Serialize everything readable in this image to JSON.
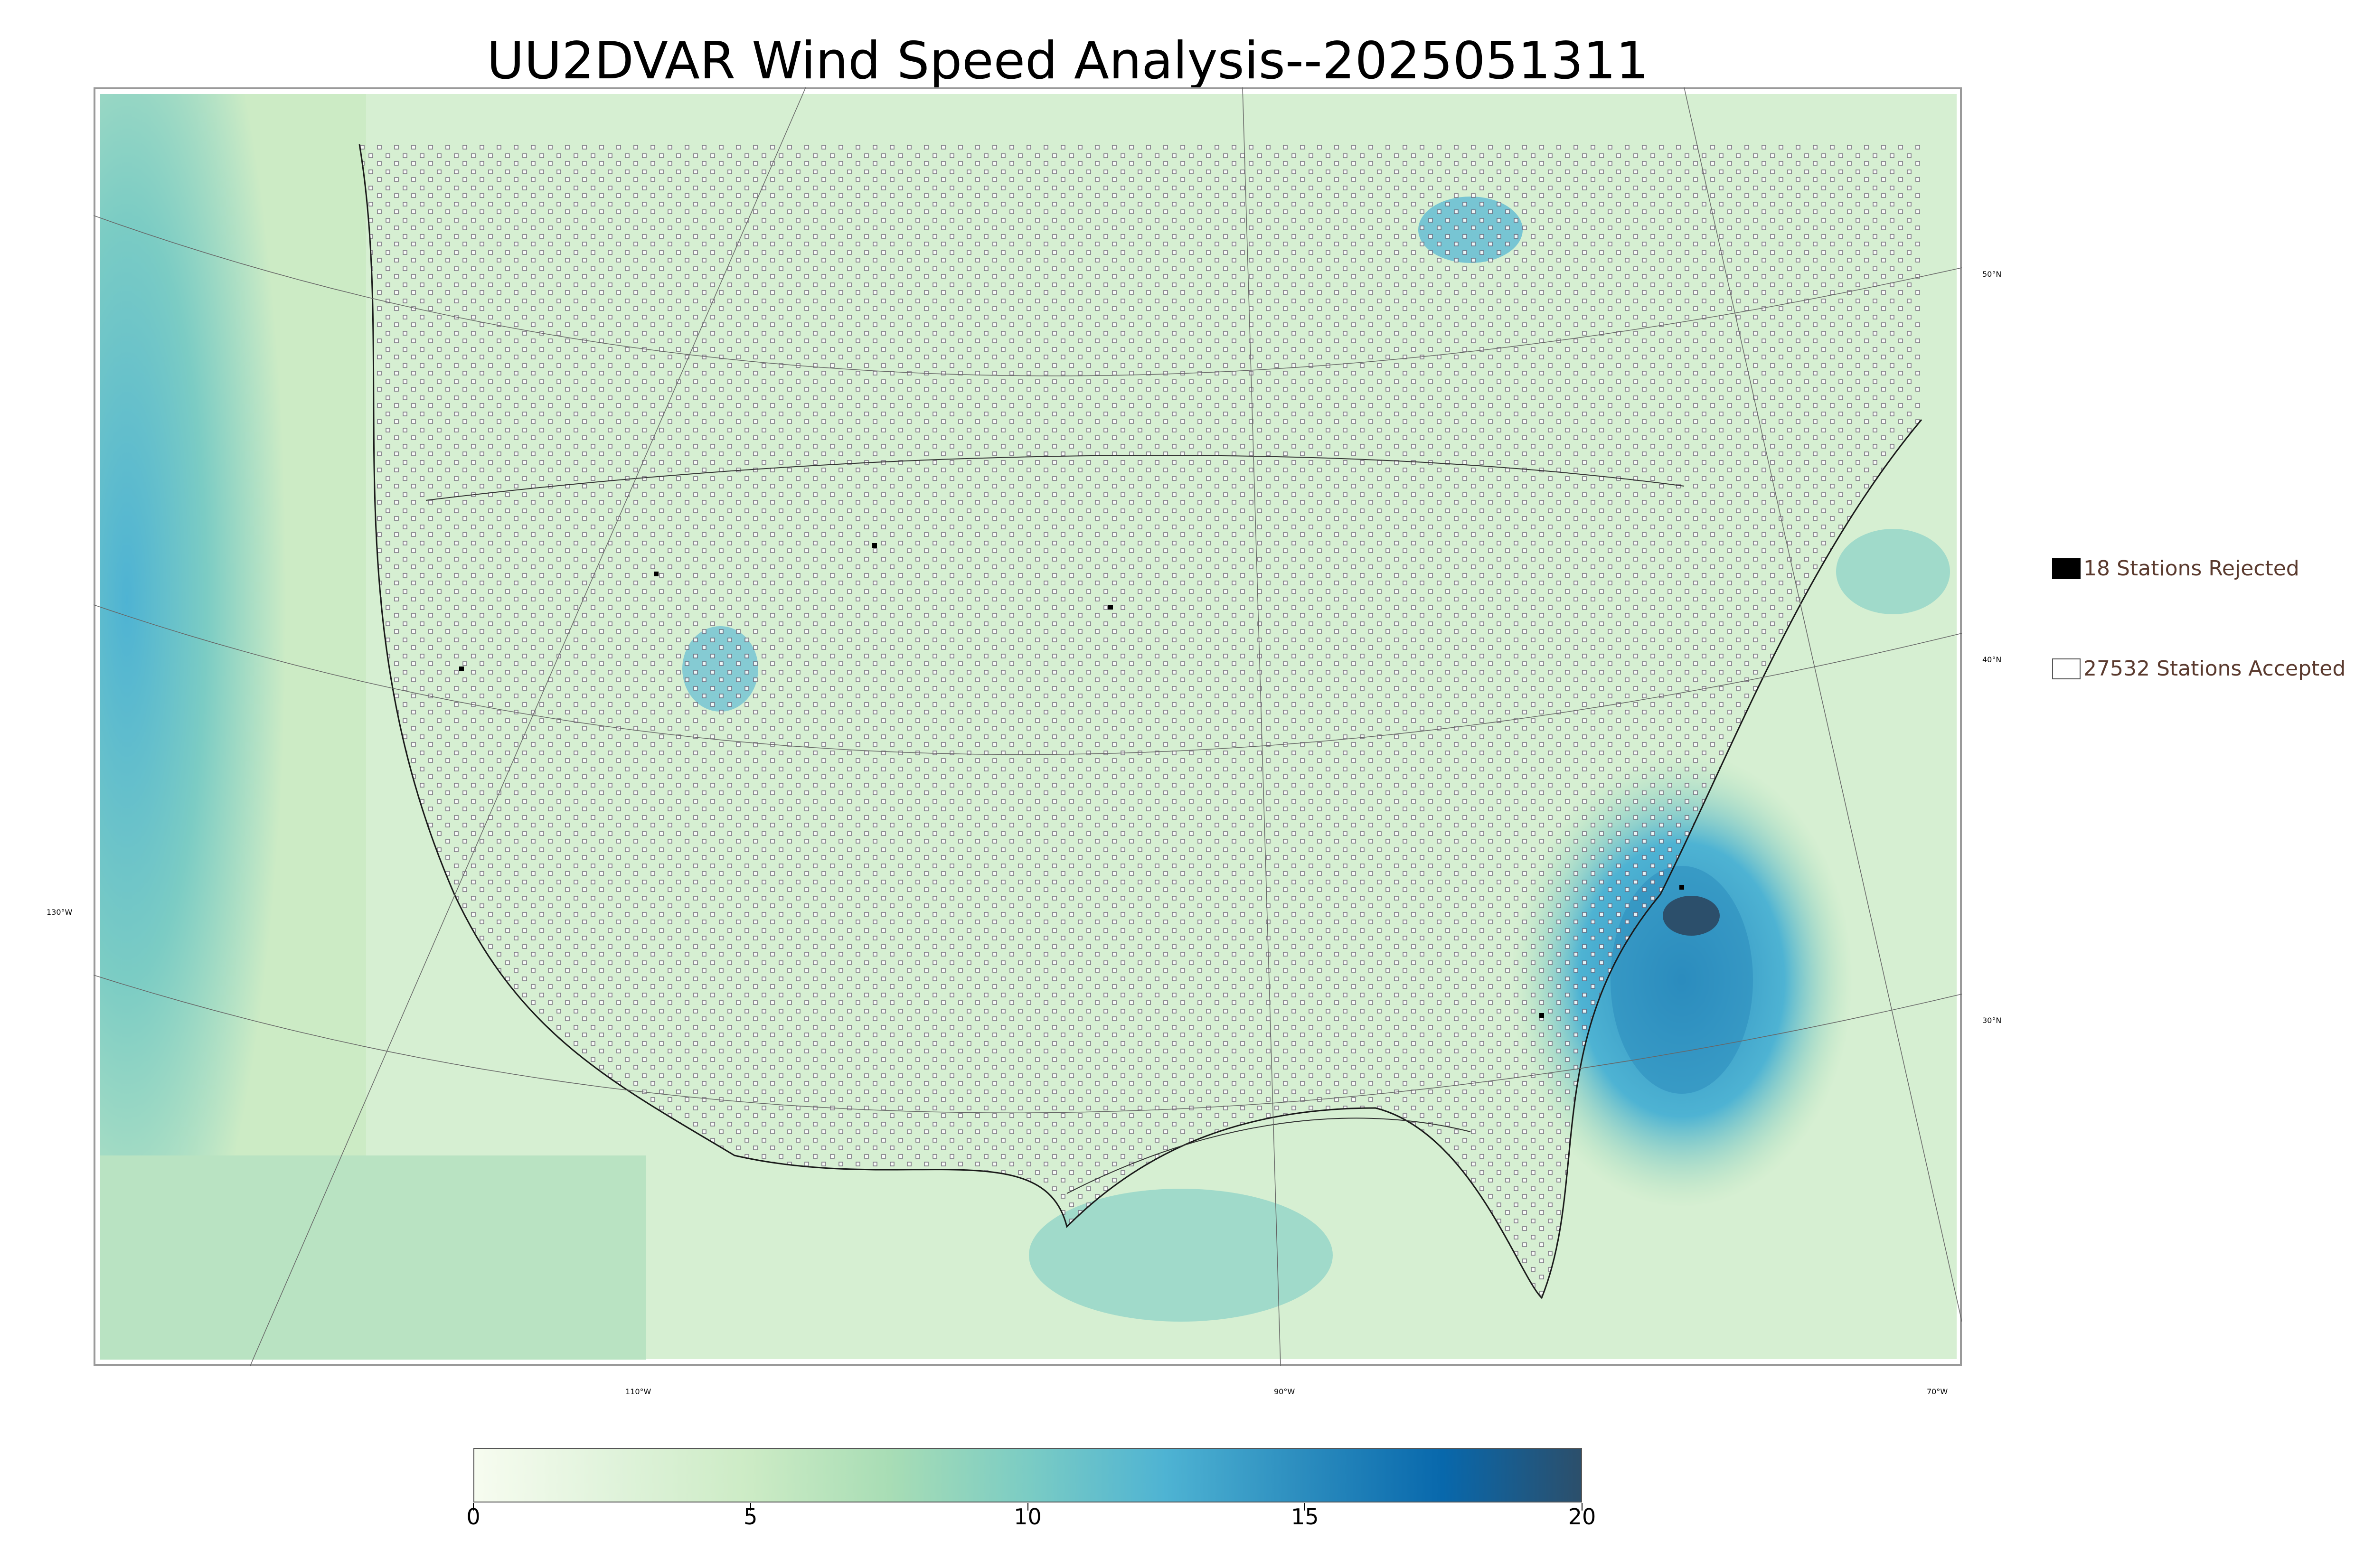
{
  "title": "UU2DVAR Wind Speed Analysis--2025051311",
  "map": {
    "lat_labels": [
      "50°N",
      "40°N",
      "30°N"
    ],
    "lon_labels": [
      "130°W",
      "110°W",
      "90°W",
      "70°W"
    ]
  },
  "legend": {
    "rejected_label": "18 Stations Rejected",
    "accepted_label": "27532 Stations Accepted",
    "rejected_color": "#000000",
    "accepted_color": "#ffffff"
  },
  "colorbar": {
    "ticks": [
      "0",
      "5",
      "10",
      "15",
      "20"
    ],
    "range": [
      0,
      20
    ],
    "colors": [
      "#f7fcf0",
      "#e0f3db",
      "#ccebc5",
      "#a8ddb5",
      "#7bccc4",
      "#4eb3d3",
      "#2b8cbe",
      "#0868ac",
      "#2c4f6b"
    ]
  }
}
